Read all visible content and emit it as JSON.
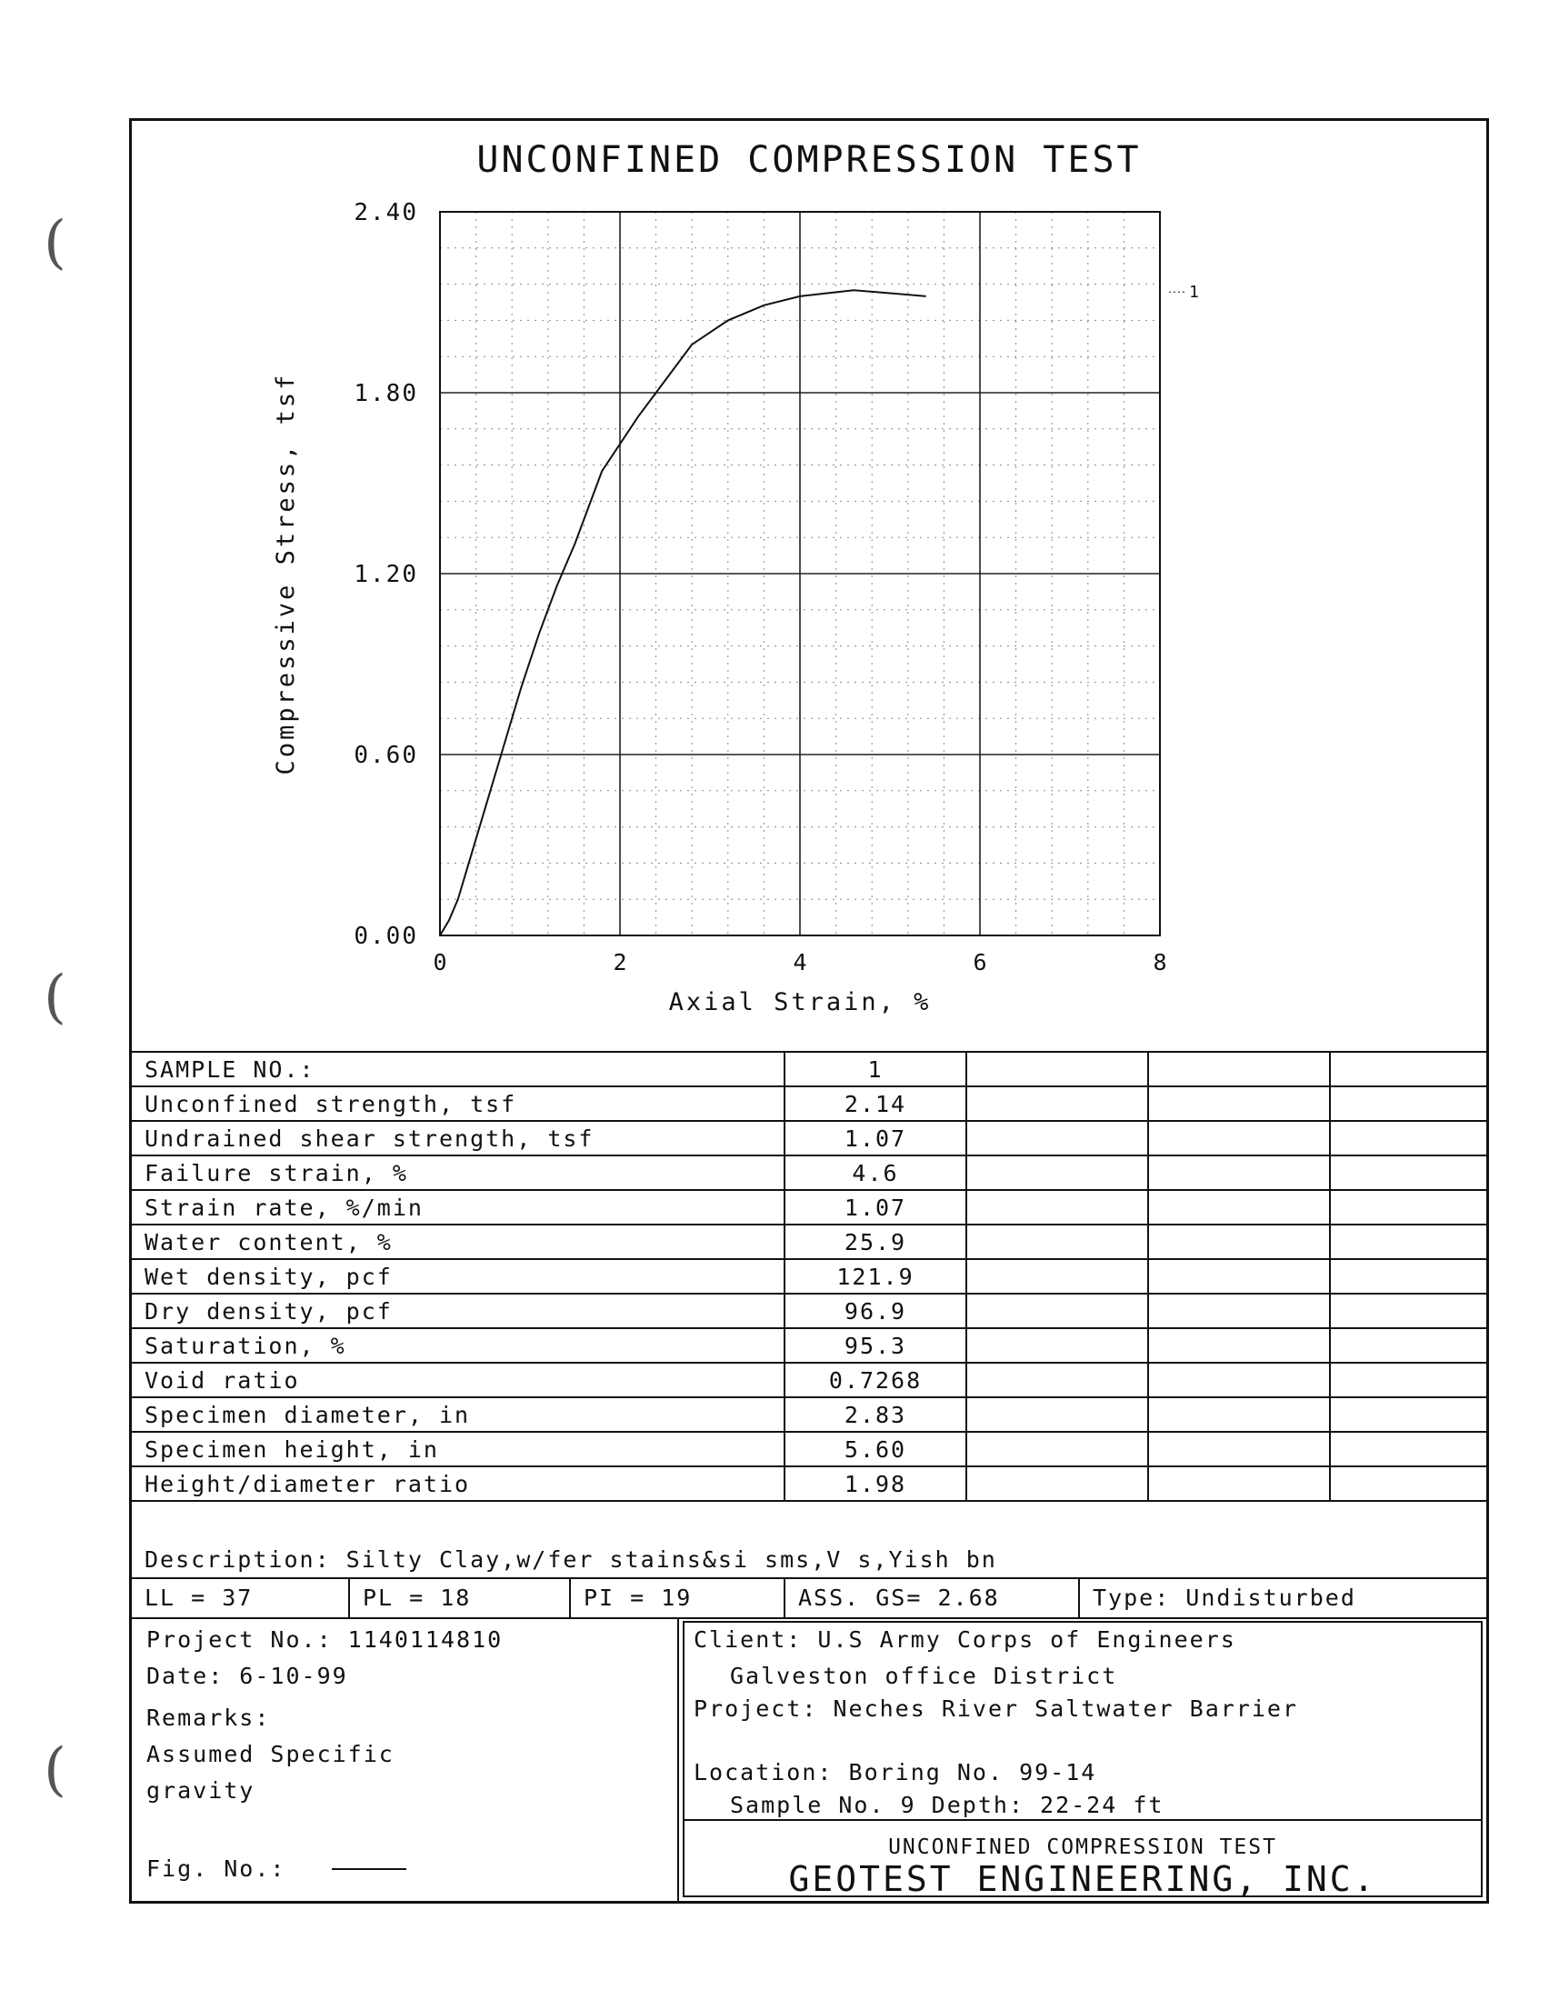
{
  "chart_data": {
    "type": "line",
    "title": "UNCONFINED COMPRESSION TEST",
    "xlabel": "Axial Strain, %",
    "ylabel": "Compressive Stress, tsf",
    "xlim": [
      0,
      8
    ],
    "ylim": [
      0,
      2.4
    ],
    "x_ticks": [
      "0",
      "2",
      "4",
      "6",
      "8"
    ],
    "y_ticks": [
      "0.00",
      "0.60",
      "1.20",
      "1.80",
      "2.40"
    ],
    "grid": true,
    "legend_placement": "right",
    "series": [
      {
        "name": "1",
        "x": [
          0,
          0.1,
          0.2,
          0.3,
          0.5,
          0.7,
          0.9,
          1.1,
          1.3,
          1.5,
          1.8,
          2.2,
          2.5,
          2.8,
          3.2,
          3.6,
          4.0,
          4.3,
          4.6,
          5.0,
          5.4
        ],
        "y": [
          0,
          0.05,
          0.12,
          0.22,
          0.42,
          0.62,
          0.82,
          1.0,
          1.16,
          1.3,
          1.54,
          1.72,
          1.84,
          1.96,
          2.04,
          2.09,
          2.12,
          2.13,
          2.14,
          2.13,
          2.12
        ]
      }
    ]
  },
  "table": {
    "rows": [
      {
        "label": "SAMPLE NO.:",
        "value": "1"
      },
      {
        "label": "Unconfined strength, tsf",
        "value": "2.14"
      },
      {
        "label": "Undrained shear strength, tsf",
        "value": "1.07"
      },
      {
        "label": "Failure strain, %",
        "value": "4.6"
      },
      {
        "label": "Strain rate, %/min",
        "value": "1.07"
      },
      {
        "label": "Water content, %",
        "value": "25.9"
      },
      {
        "label": "Wet density, pcf",
        "value": "121.9"
      },
      {
        "label": "Dry density, pcf",
        "value": "96.9"
      },
      {
        "label": "Saturation, %",
        "value": "95.3"
      },
      {
        "label": "Void ratio",
        "value": "0.7268"
      },
      {
        "label": "Specimen diameter, in",
        "value": "2.83"
      },
      {
        "label": "Specimen height, in",
        "value": "5.60"
      },
      {
        "label": "Height/diameter ratio",
        "value": "1.98"
      }
    ]
  },
  "description": "Description: Silty Clay,w/fer stains&si sms,V s,Yish bn",
  "limits": {
    "ll": "LL = 37",
    "pl": "PL = 18",
    "pi": "PI = 19",
    "gs": "ASS. GS= 2.68",
    "type": "Type: Undisturbed"
  },
  "info": {
    "project_no": "Project No.: 1140114810",
    "date": "Date: 6-10-99",
    "remarks_label": "Remarks:",
    "remarks_line1": "Assumed Specific",
    "remarks_line2": "gravity",
    "fig_no": "Fig. No.:"
  },
  "client": {
    "client": "Client: U.S Army Corps of Engineers",
    "district": "Galveston office District",
    "project": "Project: Neches River Saltwater Barrier",
    "location": "Location: Boring No. 99-14",
    "sample": "Sample No. 9   Depth: 22-24 ft",
    "report_title": "UNCONFINED COMPRESSION TEST",
    "company": "GEOTEST ENGINEERING, INC."
  }
}
